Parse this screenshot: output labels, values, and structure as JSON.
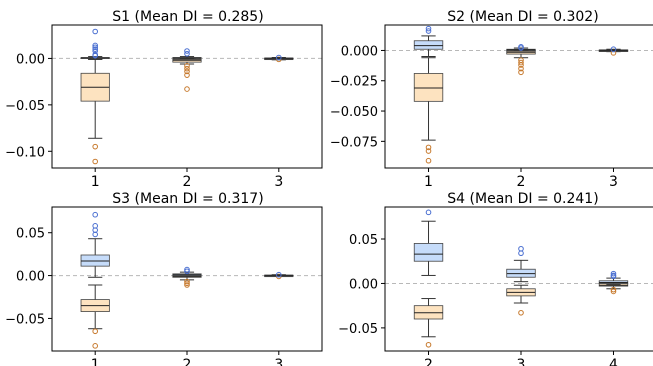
{
  "figure": {
    "colors": {
      "positive_box": "#c6dcfa",
      "positive_outlier": "#4a6fd1",
      "negative_box": "#fde3c0",
      "negative_outlier": "#c77a2e",
      "zero_line": "#b8b8b8",
      "whisker": "#333333"
    }
  },
  "chart_data": [
    {
      "type": "boxplot",
      "title": "S1 (Mean DI = 0.285)",
      "x_ticks": [
        "1",
        "2",
        "3"
      ],
      "y_ticks": [
        0.0,
        -0.05,
        -0.1
      ],
      "y_tick_labels": [
        "0.00",
        "−0.05",
        "−0.10"
      ],
      "ylim": [
        -0.118,
        0.036
      ],
      "zero_line": true,
      "grid": false,
      "boxes": [
        {
          "x": "1",
          "group": "positive",
          "whislo": -0.001,
          "q1": 0.0,
          "med": 0.0005,
          "q3": 0.001,
          "whishi": 0.002,
          "outliers": [
            0.029,
            0.014,
            0.012,
            0.01,
            0.008,
            0.004,
            0.003
          ]
        },
        {
          "x": "1",
          "group": "negative",
          "whislo": -0.086,
          "q1": -0.046,
          "med": -0.031,
          "q3": -0.016,
          "whishi": -0.001,
          "outliers": [
            -0.095,
            -0.111
          ]
        },
        {
          "x": "2",
          "group": "positive",
          "whislo": 0.0,
          "q1": 0.0,
          "med": 0.0005,
          "q3": 0.001,
          "whishi": 0.002,
          "outliers": [
            0.008,
            0.005
          ]
        },
        {
          "x": "2",
          "group": "negative",
          "whislo": -0.006,
          "q1": -0.004,
          "med": -0.002,
          "q3": -0.001,
          "whishi": 0.0,
          "outliers": [
            -0.008,
            -0.011,
            -0.014,
            -0.018,
            -0.033
          ]
        },
        {
          "x": "3",
          "group": "positive",
          "whislo": 0.0,
          "q1": 0.0,
          "med": 0.0002,
          "q3": 0.0005,
          "whishi": 0.001,
          "outliers": [
            0.001
          ]
        },
        {
          "x": "3",
          "group": "negative",
          "whislo": -0.0015,
          "q1": -0.001,
          "med": -0.0005,
          "q3": -0.0002,
          "whishi": 0.0,
          "outliers": [
            -0.001
          ]
        }
      ]
    },
    {
      "type": "boxplot",
      "title": "S2 (Mean DI = 0.302)",
      "x_ticks": [
        "1",
        "2",
        "3"
      ],
      "y_ticks": [
        0.0,
        -0.025,
        -0.05,
        -0.075
      ],
      "y_tick_labels": [
        "0.000",
        "−0.025",
        "−0.050",
        "−0.075"
      ],
      "ylim": [
        -0.097,
        0.021
      ],
      "zero_line": true,
      "grid": false,
      "boxes": [
        {
          "x": "1",
          "group": "positive",
          "whislo": -0.005,
          "q1": 0.001,
          "med": 0.004,
          "q3": 0.008,
          "whishi": 0.012,
          "outliers": [
            0.018,
            0.016
          ]
        },
        {
          "x": "1",
          "group": "negative",
          "whislo": -0.074,
          "q1": -0.042,
          "med": -0.031,
          "q3": -0.019,
          "whishi": -0.006,
          "outliers": [
            -0.08,
            -0.083,
            -0.091
          ]
        },
        {
          "x": "2",
          "group": "positive",
          "whislo": 0.0,
          "q1": 0.0,
          "med": 0.0005,
          "q3": 0.001,
          "whishi": 0.002,
          "outliers": [
            0.003,
            0.002
          ]
        },
        {
          "x": "2",
          "group": "negative",
          "whislo": -0.006,
          "q1": -0.003,
          "med": -0.0015,
          "q3": -0.0005,
          "whishi": 0.0,
          "outliers": [
            -0.008,
            -0.01,
            -0.012,
            -0.015,
            -0.018
          ]
        },
        {
          "x": "3",
          "group": "positive",
          "whislo": 0.0,
          "q1": 0.0,
          "med": 0.0002,
          "q3": 0.0005,
          "whishi": 0.001,
          "outliers": [
            0.001
          ]
        },
        {
          "x": "3",
          "group": "negative",
          "whislo": -0.001,
          "q1": -0.0008,
          "med": -0.0004,
          "q3": -0.0001,
          "whishi": 0.0,
          "outliers": [
            -0.002
          ]
        }
      ]
    },
    {
      "type": "boxplot",
      "title": "S3 (Mean DI = 0.317)",
      "x_ticks": [
        "1",
        "2",
        "3"
      ],
      "y_ticks": [
        0.05,
        0.0,
        -0.05
      ],
      "y_tick_labels": [
        "0.05",
        "0.00",
        "−0.05"
      ],
      "ylim": [
        -0.088,
        0.08
      ],
      "zero_line": true,
      "grid": false,
      "boxes": [
        {
          "x": "1",
          "group": "positive",
          "whislo": -0.002,
          "q1": 0.011,
          "med": 0.017,
          "q3": 0.024,
          "whishi": 0.043,
          "outliers": [
            0.071,
            0.058,
            0.053,
            0.048
          ]
        },
        {
          "x": "1",
          "group": "negative",
          "whislo": -0.062,
          "q1": -0.042,
          "med": -0.035,
          "q3": -0.028,
          "whishi": -0.011,
          "outliers": [
            -0.065,
            -0.082
          ]
        },
        {
          "x": "2",
          "group": "positive",
          "whislo": 0.0,
          "q1": 0.0,
          "med": 0.001,
          "q3": 0.002,
          "whishi": 0.004,
          "outliers": [
            0.007,
            0.005
          ]
        },
        {
          "x": "2",
          "group": "negative",
          "whislo": -0.005,
          "q1": -0.002,
          "med": -0.001,
          "q3": 0.0,
          "whishi": 0.0,
          "outliers": [
            -0.007,
            -0.009,
            -0.011
          ]
        },
        {
          "x": "3",
          "group": "positive",
          "whislo": 0.0,
          "q1": 0.0,
          "med": 0.0003,
          "q3": 0.0006,
          "whishi": 0.001,
          "outliers": [
            0.001
          ]
        },
        {
          "x": "3",
          "group": "negative",
          "whislo": -0.001,
          "q1": -0.0006,
          "med": -0.0003,
          "q3": -0.0001,
          "whishi": 0.0,
          "outliers": [
            -0.001
          ]
        }
      ]
    },
    {
      "type": "boxplot",
      "title": "S4 (Mean DI = 0.241)",
      "x_ticks": [
        "2",
        "3",
        "4"
      ],
      "y_ticks": [
        0.05,
        0.0,
        -0.05
      ],
      "y_tick_labels": [
        "0.05",
        "0.00",
        "−0.05"
      ],
      "ylim": [
        -0.076,
        0.086
      ],
      "zero_line": true,
      "grid": false,
      "boxes": [
        {
          "x": "2",
          "group": "positive",
          "whislo": 0.009,
          "q1": 0.025,
          "med": 0.033,
          "q3": 0.045,
          "whishi": 0.07,
          "outliers": [
            0.08
          ]
        },
        {
          "x": "2",
          "group": "negative",
          "whislo": -0.06,
          "q1": -0.04,
          "med": -0.033,
          "q3": -0.025,
          "whishi": -0.017,
          "outliers": [
            -0.069
          ]
        },
        {
          "x": "3",
          "group": "positive",
          "whislo": 0.002,
          "q1": 0.007,
          "med": 0.011,
          "q3": 0.016,
          "whishi": 0.026,
          "outliers": [
            0.039,
            0.034
          ]
        },
        {
          "x": "3",
          "group": "negative",
          "whislo": -0.022,
          "q1": -0.014,
          "med": -0.01,
          "q3": -0.006,
          "whishi": -0.002,
          "outliers": [
            -0.033
          ]
        },
        {
          "x": "4",
          "group": "positive",
          "whislo": -0.001,
          "q1": 0.0,
          "med": 0.001,
          "q3": 0.003,
          "whishi": 0.006,
          "outliers": [
            0.011,
            0.009,
            0.008
          ]
        },
        {
          "x": "4",
          "group": "negative",
          "whislo": -0.006,
          "q1": -0.003,
          "med": -0.002,
          "q3": 0.0,
          "whishi": 0.002,
          "outliers": [
            -0.007,
            -0.009
          ]
        }
      ]
    }
  ]
}
